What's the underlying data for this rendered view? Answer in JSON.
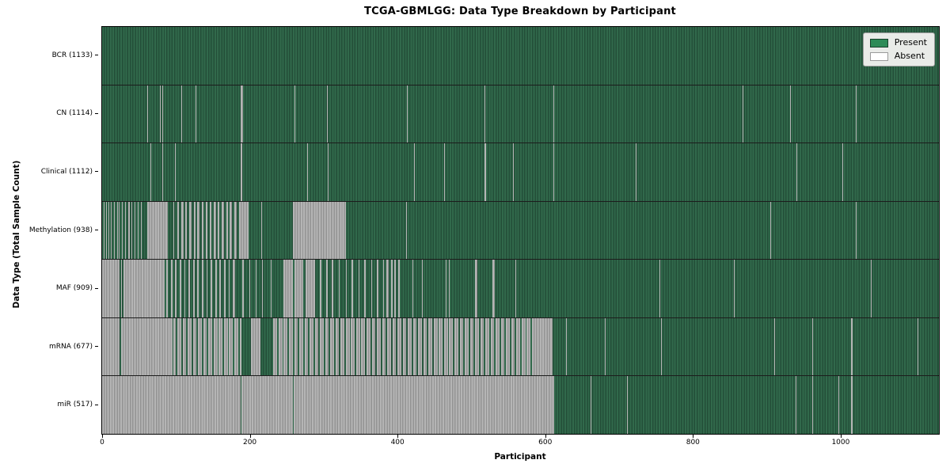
{
  "colors": {
    "present_swatch": "#2e8b57",
    "absent_swatch": "#ffffff",
    "present_light": "#31694b",
    "present_dark": "#234e38",
    "absent_light": "#b5b5b5",
    "absent_dark": "#939393",
    "legend_bg": "#e9ebe8",
    "row_divider": "#1c1c1c"
  },
  "chart_data": {
    "type": "heatmap",
    "title": "TCGA-GBMLGG: Data Type Breakdown by Participant",
    "xlabel": "Participant",
    "ylabel": "Data Type (Total Sample Count)",
    "x_ticks": [
      0,
      200,
      400,
      600,
      800,
      1000
    ],
    "x_max": 1133,
    "legend": [
      "Present",
      "Absent"
    ],
    "legend_position": "upper right",
    "grid": false,
    "cell_states": {
      "present": "green",
      "absent": "white"
    },
    "rows": [
      {
        "data_type": "BCR",
        "label": "BCR (1133)",
        "present_count": 1133,
        "absent_segments": []
      },
      {
        "data_type": "CN",
        "label": "CN (1114)",
        "present_count": 1114,
        "absent_segments": [
          [
            61,
            62
          ],
          [
            78,
            79
          ],
          [
            81,
            82
          ],
          [
            107,
            108
          ],
          [
            127,
            128
          ],
          [
            188,
            191
          ],
          [
            260,
            261
          ],
          [
            304,
            306
          ],
          [
            413,
            414
          ],
          [
            518,
            519
          ],
          [
            611,
            612
          ],
          [
            867,
            868
          ],
          [
            931,
            932
          ],
          [
            1020,
            1021
          ]
        ]
      },
      {
        "data_type": "Clinical",
        "label": "Clinical (1112)",
        "present_count": 1112,
        "absent_segments": [
          [
            65,
            66
          ],
          [
            81,
            82
          ],
          [
            99,
            100
          ],
          [
            188,
            190
          ],
          [
            278,
            279
          ],
          [
            305,
            306
          ],
          [
            422,
            423
          ],
          [
            463,
            464
          ],
          [
            518,
            520
          ],
          [
            556,
            557
          ],
          [
            611,
            612
          ],
          [
            722,
            723
          ],
          [
            940,
            941
          ],
          [
            1002,
            1003
          ]
        ]
      },
      {
        "data_type": "Methylation",
        "label": "Methylation (938)",
        "present_count": 938,
        "absent_segments": [
          [
            2,
            3
          ],
          [
            5,
            6
          ],
          [
            9,
            10
          ],
          [
            12,
            13
          ],
          [
            16,
            17
          ],
          [
            20,
            21
          ],
          [
            23,
            24
          ],
          [
            27,
            28
          ],
          [
            31,
            32
          ],
          [
            35,
            37
          ],
          [
            40,
            41
          ],
          [
            44,
            45
          ],
          [
            48,
            49
          ],
          [
            52,
            53
          ],
          [
            61,
            89
          ],
          [
            97,
            98
          ],
          [
            102,
            104
          ],
          [
            107,
            110
          ],
          [
            113,
            115
          ],
          [
            118,
            121
          ],
          [
            124,
            126
          ],
          [
            129,
            132
          ],
          [
            135,
            137
          ],
          [
            140,
            143
          ],
          [
            146,
            148
          ],
          [
            151,
            154
          ],
          [
            157,
            159
          ],
          [
            162,
            165
          ],
          [
            168,
            170
          ],
          [
            173,
            176
          ],
          [
            179,
            182
          ],
          [
            185,
            198
          ],
          [
            215,
            216
          ],
          [
            258,
            330
          ],
          [
            412,
            413
          ],
          [
            905,
            906
          ],
          [
            1020,
            1021
          ]
        ]
      },
      {
        "data_type": "MAF",
        "label": "MAF (909)",
        "present_count": 909,
        "absent_segments": [
          [
            0,
            24
          ],
          [
            26,
            27
          ],
          [
            29,
            85
          ],
          [
            87,
            89
          ],
          [
            93,
            95
          ],
          [
            99,
            101
          ],
          [
            105,
            107
          ],
          [
            111,
            113
          ],
          [
            117,
            119
          ],
          [
            123,
            125
          ],
          [
            129,
            131
          ],
          [
            135,
            137
          ],
          [
            141,
            143
          ],
          [
            147,
            149
          ],
          [
            153,
            155
          ],
          [
            159,
            161
          ],
          [
            165,
            167
          ],
          [
            171,
            173
          ],
          [
            177,
            180
          ],
          [
            190,
            192
          ],
          [
            199,
            200
          ],
          [
            208,
            209
          ],
          [
            217,
            218
          ],
          [
            228,
            229
          ],
          [
            245,
            258
          ],
          [
            261,
            272
          ],
          [
            275,
            288
          ],
          [
            295,
            297
          ],
          [
            303,
            305
          ],
          [
            311,
            313
          ],
          [
            320,
            322
          ],
          [
            330,
            331
          ],
          [
            338,
            340
          ],
          [
            347,
            348
          ],
          [
            355,
            357
          ],
          [
            364,
            365
          ],
          [
            372,
            374
          ],
          [
            380,
            381
          ],
          [
            385,
            388
          ],
          [
            391,
            393
          ],
          [
            396,
            398
          ],
          [
            401,
            403
          ],
          [
            420,
            421
          ],
          [
            433,
            434
          ],
          [
            465,
            466
          ],
          [
            470,
            471
          ],
          [
            505,
            508
          ],
          [
            528,
            532
          ],
          [
            560,
            561
          ],
          [
            755,
            756
          ],
          [
            855,
            856
          ],
          [
            1041,
            1042
          ]
        ]
      },
      {
        "data_type": "mRNA",
        "label": "mRNA (677)",
        "present_count": 677,
        "absent_segments": [
          [
            0,
            24
          ],
          [
            26,
            95
          ],
          [
            97,
            100
          ],
          [
            102,
            107
          ],
          [
            109,
            114
          ],
          [
            116,
            121
          ],
          [
            123,
            128
          ],
          [
            130,
            135
          ],
          [
            137,
            142
          ],
          [
            144,
            149
          ],
          [
            151,
            156
          ],
          [
            158,
            163
          ],
          [
            165,
            170
          ],
          [
            172,
            177
          ],
          [
            179,
            184
          ],
          [
            186,
            189
          ],
          [
            202,
            214
          ],
          [
            232,
            237
          ],
          [
            239,
            244
          ],
          [
            246,
            251
          ],
          [
            253,
            258
          ],
          [
            260,
            265
          ],
          [
            267,
            272
          ],
          [
            274,
            279
          ],
          [
            281,
            286
          ],
          [
            288,
            293
          ],
          [
            295,
            300
          ],
          [
            302,
            307
          ],
          [
            309,
            314
          ],
          [
            316,
            321
          ],
          [
            323,
            328
          ],
          [
            330,
            335
          ],
          [
            337,
            342
          ],
          [
            344,
            349
          ],
          [
            351,
            356
          ],
          [
            358,
            363
          ],
          [
            365,
            370
          ],
          [
            372,
            377
          ],
          [
            379,
            384
          ],
          [
            386,
            391
          ],
          [
            393,
            398
          ],
          [
            400,
            405
          ],
          [
            407,
            412
          ],
          [
            414,
            419
          ],
          [
            421,
            426
          ],
          [
            428,
            433
          ],
          [
            435,
            440
          ],
          [
            442,
            447
          ],
          [
            449,
            454
          ],
          [
            456,
            461
          ],
          [
            463,
            468
          ],
          [
            470,
            475
          ],
          [
            477,
            482
          ],
          [
            484,
            489
          ],
          [
            491,
            496
          ],
          [
            498,
            503
          ],
          [
            505,
            510
          ],
          [
            512,
            517
          ],
          [
            519,
            524
          ],
          [
            526,
            531
          ],
          [
            533,
            538
          ],
          [
            540,
            545
          ],
          [
            547,
            552
          ],
          [
            554,
            559
          ],
          [
            561,
            566
          ],
          [
            568,
            573
          ],
          [
            575,
            580
          ],
          [
            582,
            610
          ],
          [
            628,
            629
          ],
          [
            681,
            682
          ],
          [
            757,
            758
          ],
          [
            910,
            911
          ],
          [
            961,
            962
          ],
          [
            1014,
            1016
          ],
          [
            1104,
            1105
          ]
        ]
      },
      {
        "data_type": "miR",
        "label": "miR (517)",
        "present_count": 517,
        "absent_segments": [
          [
            0,
            188
          ],
          [
            189,
            258
          ],
          [
            259,
            612
          ],
          [
            661,
            662
          ],
          [
            711,
            712
          ],
          [
            939,
            940
          ],
          [
            961,
            962
          ],
          [
            997,
            998
          ],
          [
            1014,
            1016
          ]
        ]
      }
    ]
  }
}
